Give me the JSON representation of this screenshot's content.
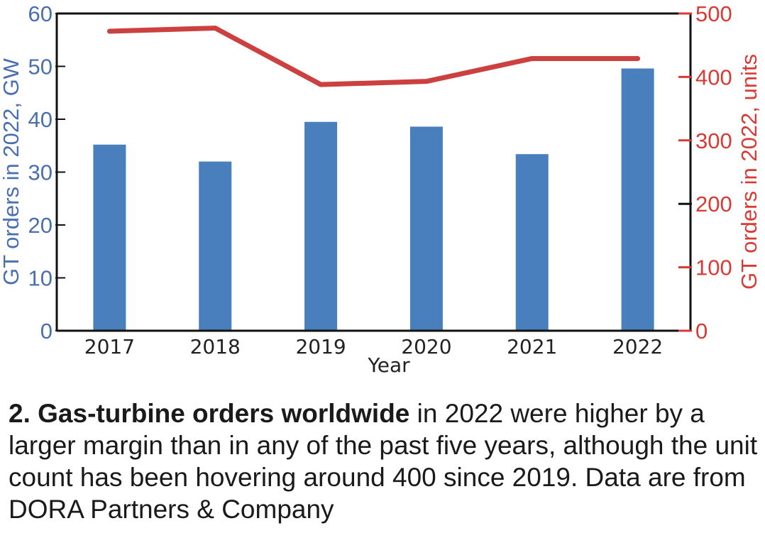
{
  "chart_data": {
    "type": "bar",
    "categories": [
      "2017",
      "2018",
      "2019",
      "2020",
      "2021",
      "2022"
    ],
    "series": [
      {
        "values": [
          35.2,
          32.0,
          39.5,
          38.6,
          33.4,
          49.6
        ],
        "axis": "left",
        "kind": "bar",
        "color": "#4a7fbd"
      },
      {
        "values": [
          472,
          477,
          388,
          393,
          429,
          429
        ],
        "axis": "right",
        "kind": "line",
        "color": "#cc4040"
      }
    ],
    "xlabel": "Year",
    "ylabel": "GT orders in 2022, GW",
    "y2label": "GT orders in 2022, units",
    "ylim": [
      0,
      60
    ],
    "y2lim": [
      0,
      500
    ],
    "yticks": [
      0,
      10,
      20,
      30,
      40,
      50,
      60
    ],
    "y2ticks": [
      0,
      100,
      200,
      300,
      400,
      500
    ],
    "left_axis_color": "#4a6fb0",
    "right_axis_color": "#d93a34",
    "grid": false
  },
  "caption": {
    "bold": "2. Gas-turbine orders worldwide",
    "text": " in 2022 were higher by a larger margin than in any of the past five years, although the unit count has been hovering around 400 since 2019. Data are from DORA Partners & Company"
  }
}
